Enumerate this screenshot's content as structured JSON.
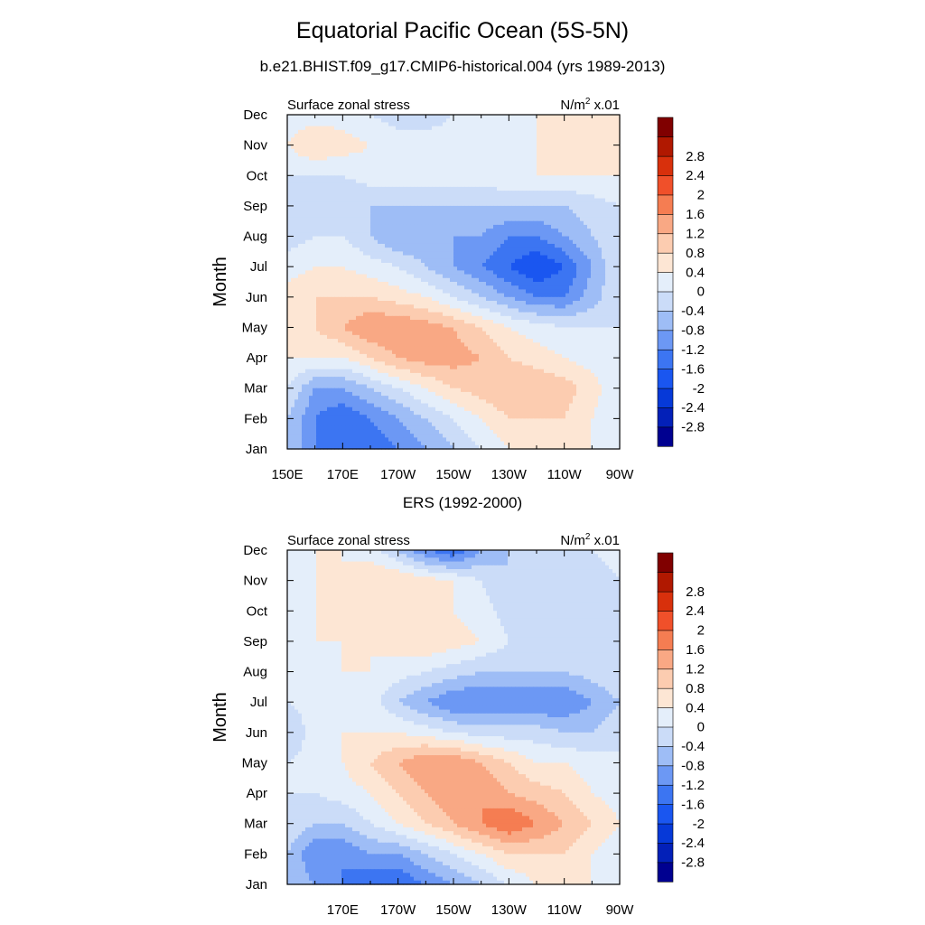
{
  "header": {
    "title": "Equatorial Pacific Ocean (5S-5N)",
    "subtitle": "b.e21.BHIST.f09_g17.CMIP6-historical.004 (yrs 1989-2013)"
  },
  "colorbar": {
    "levels": [
      -2.8,
      -2.4,
      -2,
      -1.6,
      -1.2,
      -0.8,
      -0.4,
      0,
      0.4,
      0.8,
      1.2,
      1.6,
      2,
      2.4,
      2.8
    ],
    "labels": [
      "-2.8",
      "-2.4",
      "-2",
      "-1.6",
      "-1.2",
      "-0.8",
      "-0.4",
      "0",
      "0.4",
      "0.8",
      "1.2",
      "1.6",
      "2",
      "2.4",
      "2.8"
    ],
    "colors": [
      "#000090",
      "#0320B8",
      "#0639D8",
      "#1A56F0",
      "#3C75F2",
      "#6C98F4",
      "#9EBDF6",
      "#CBDCF8",
      "#E4EEFA",
      "#FDE6D4",
      "#FCCCB0",
      "#F9A884",
      "#F57D52",
      "#F0502A",
      "#D8300C",
      "#B01800",
      "#800000"
    ]
  },
  "chart_data": [
    {
      "type": "heatmap",
      "panel_title": "",
      "left_label": "Surface zonal stress",
      "right_label": "N/m",
      "right_label_sup": "2",
      "right_label_suffix": " x.01",
      "ylabel": "Month",
      "xlim": [
        150,
        270
      ],
      "x_ticks": [
        150,
        170,
        190,
        210,
        230,
        250,
        270
      ],
      "x_tick_labels": [
        "150E",
        "170E",
        "170W",
        "150W",
        "130W",
        "110W",
        "90W"
      ],
      "y_tick_labels": [
        "Jan",
        "Feb",
        "Mar",
        "Apr",
        "May",
        "Jun",
        "Jul",
        "Aug",
        "Sep",
        "Oct",
        "Nov",
        "Dec"
      ],
      "x": [
        150,
        160,
        170,
        180,
        190,
        200,
        210,
        220,
        230,
        240,
        250,
        260,
        270
      ],
      "z": [
        [
          -0.4,
          -1.2,
          -1.6,
          -1.6,
          -1.2,
          -0.8,
          -0.4,
          0.0,
          0.4,
          0.4,
          0.4,
          0.4,
          0.0
        ],
        [
          -0.4,
          -1.2,
          -1.6,
          -1.2,
          -0.8,
          -0.4,
          0.0,
          0.4,
          0.8,
          0.8,
          0.8,
          0.4,
          0.0
        ],
        [
          0.0,
          -0.8,
          -0.8,
          -0.4,
          0.0,
          0.4,
          0.8,
          1.0,
          1.2,
          1.2,
          1.0,
          0.6,
          0.0
        ],
        [
          0.4,
          0.4,
          0.4,
          0.8,
          1.2,
          1.4,
          1.4,
          1.2,
          0.8,
          0.6,
          0.4,
          0.2,
          0.0
        ],
        [
          0.6,
          0.8,
          1.2,
          1.6,
          1.6,
          1.4,
          1.2,
          0.8,
          0.4,
          0.2,
          0.0,
          0.0,
          0.0
        ],
        [
          0.6,
          0.8,
          0.8,
          0.8,
          0.6,
          0.4,
          0.0,
          -0.4,
          -0.8,
          -1.2,
          -1.2,
          -0.6,
          0.0
        ],
        [
          0.2,
          0.4,
          0.4,
          0.2,
          0.0,
          -0.4,
          -0.8,
          -1.2,
          -1.6,
          -2.0,
          -1.6,
          -0.8,
          0.0
        ],
        [
          -0.2,
          0.0,
          0.0,
          -0.4,
          -0.8,
          -0.8,
          -0.8,
          -0.8,
          -1.2,
          -1.2,
          -0.8,
          -0.4,
          0.0
        ],
        [
          -0.2,
          -0.4,
          -0.4,
          -0.4,
          -0.4,
          -0.4,
          -0.4,
          -0.4,
          -0.4,
          -0.4,
          -0.4,
          -0.2,
          0.0
        ],
        [
          0.0,
          0.0,
          0.0,
          0.2,
          0.2,
          0.2,
          0.2,
          0.2,
          0.4,
          0.4,
          0.4,
          0.4,
          0.4
        ],
        [
          0.4,
          0.8,
          0.6,
          0.4,
          0.2,
          0.2,
          0.2,
          0.2,
          0.2,
          0.4,
          0.4,
          0.4,
          0.4
        ],
        [
          0.2,
          0.2,
          0.2,
          0.0,
          -0.2,
          -0.2,
          0.0,
          0.2,
          0.2,
          0.4,
          0.4,
          0.4,
          0.4
        ]
      ]
    },
    {
      "type": "heatmap",
      "panel_title": "ERS (1992-2000)",
      "left_label": "Surface zonal stress",
      "right_label": "N/m",
      "right_label_sup": "2",
      "right_label_suffix": " x.01",
      "ylabel": "Month",
      "xlim": [
        150,
        270
      ],
      "x_ticks": [
        170,
        190,
        210,
        230,
        250,
        270
      ],
      "x_tick_labels": [
        "170E",
        "170W",
        "150W",
        "130W",
        "110W",
        "90W"
      ],
      "y_tick_labels": [
        "Jan",
        "Feb",
        "Mar",
        "Apr",
        "May",
        "Jun",
        "Jul",
        "Aug",
        "Sep",
        "Oct",
        "Nov",
        "Dec"
      ],
      "x": [
        150,
        160,
        170,
        180,
        190,
        200,
        210,
        220,
        230,
        240,
        250,
        260,
        270
      ],
      "z": [
        [
          -0.4,
          -0.8,
          -1.2,
          -1.6,
          -1.6,
          -1.2,
          -0.8,
          -0.4,
          0.0,
          0.4,
          0.4,
          0.4,
          0.0
        ],
        [
          -0.4,
          -1.2,
          -1.2,
          -0.8,
          -0.8,
          -0.4,
          0.0,
          0.4,
          0.8,
          0.8,
          0.8,
          0.4,
          0.0
        ],
        [
          0.0,
          -0.4,
          -0.4,
          0.0,
          0.4,
          0.8,
          1.2,
          1.6,
          2.0,
          1.6,
          1.2,
          0.8,
          0.4
        ],
        [
          0.0,
          0.0,
          0.2,
          0.4,
          0.8,
          1.2,
          1.6,
          1.6,
          1.2,
          1.0,
          0.8,
          0.4,
          0.2
        ],
        [
          0.0,
          0.2,
          0.4,
          0.8,
          1.2,
          1.6,
          1.6,
          1.2,
          0.8,
          0.4,
          0.4,
          0.2,
          0.0
        ],
        [
          -0.4,
          0.2,
          0.4,
          0.4,
          0.4,
          0.2,
          0.0,
          -0.2,
          -0.2,
          -0.2,
          -0.4,
          -0.4,
          0.0
        ],
        [
          0.0,
          0.2,
          0.4,
          0.2,
          -0.4,
          -0.8,
          -1.2,
          -1.2,
          -1.2,
          -1.2,
          -1.2,
          -0.8,
          -0.4
        ],
        [
          0.0,
          0.2,
          0.4,
          0.4,
          0.2,
          0.0,
          -0.2,
          -0.4,
          -0.4,
          -0.4,
          -0.4,
          -0.2,
          0.0
        ],
        [
          0.2,
          0.4,
          0.4,
          0.4,
          0.6,
          0.8,
          0.6,
          0.4,
          0.0,
          -0.2,
          -0.4,
          -0.2,
          0.0
        ],
        [
          0.2,
          0.4,
          0.4,
          0.4,
          0.6,
          0.6,
          0.4,
          0.2,
          -0.2,
          -0.4,
          -0.4,
          -0.2,
          0.0
        ],
        [
          0.2,
          0.4,
          0.4,
          0.8,
          0.8,
          0.6,
          0.4,
          0.0,
          -0.4,
          -0.4,
          -0.4,
          -0.2,
          0.0
        ],
        [
          0.4,
          0.4,
          0.4,
          0.2,
          -0.4,
          -1.2,
          -1.6,
          -0.8,
          -0.4,
          -0.4,
          -0.2,
          0.0,
          0.2
        ]
      ]
    }
  ]
}
